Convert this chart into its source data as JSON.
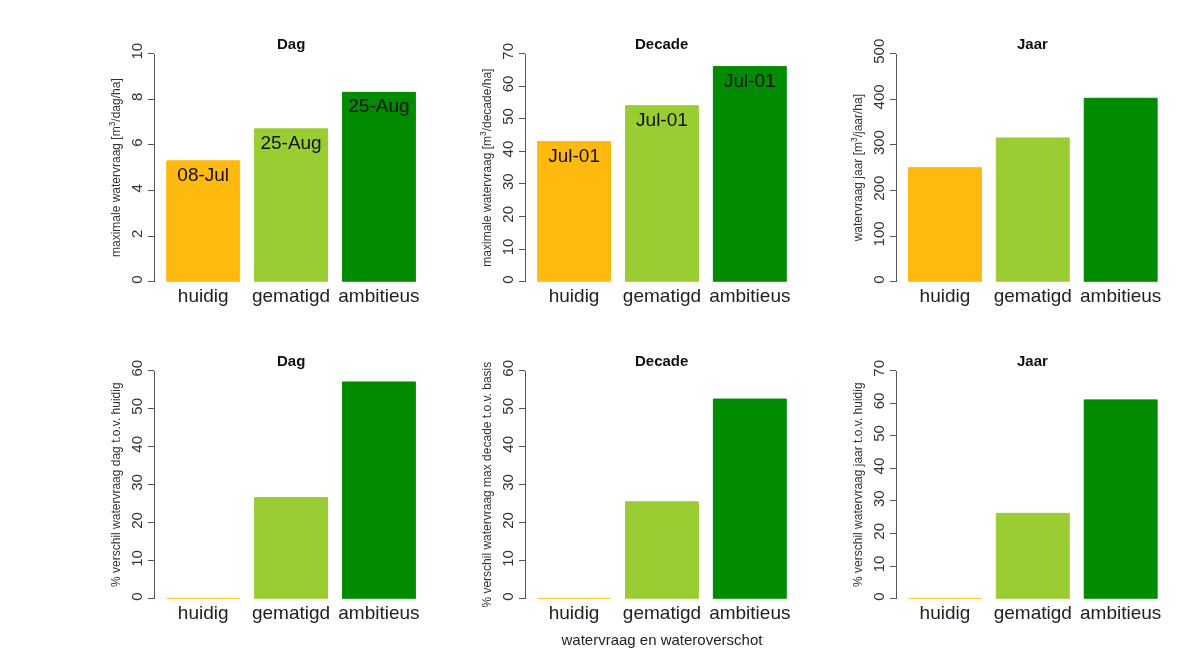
{
  "chart_data": [
    {
      "type": "bar",
      "title": "Dag",
      "ylabel": "maximale watervraag [m$^{3}$/dag/ha]",
      "categories": [
        "huidig",
        "gematigd",
        "ambitieus"
      ],
      "values": [
        5.3,
        6.7,
        8.3
      ],
      "colors": [
        "#ffb90f",
        "#9acd32",
        "#008b00"
      ],
      "ylim": [
        0,
        10
      ],
      "yticks": [
        0,
        2,
        4,
        6,
        8,
        10
      ],
      "grid": false,
      "legend": false,
      "value_labels": [
        "08-Jul",
        "25-Aug",
        "25-Aug"
      ]
    },
    {
      "type": "bar",
      "title": "Decade",
      "ylabel": "maximale watervraag [m$^{3}$/decade/ha]",
      "categories": [
        "huidig",
        "gematigd",
        "ambitieus"
      ],
      "values": [
        43,
        54,
        66
      ],
      "colors": [
        "#ffb90f",
        "#9acd32",
        "#008b00"
      ],
      "ylim": [
        0,
        70
      ],
      "yticks": [
        0,
        10,
        20,
        30,
        40,
        50,
        60,
        70
      ],
      "grid": false,
      "legend": false,
      "value_labels": [
        "Jul-01",
        "Jul-01",
        "Jul-01"
      ]
    },
    {
      "type": "bar",
      "title": "Jaar",
      "ylabel": "watervraag jaar [m$^{3}$/jaar/ha]",
      "categories": [
        "huidig",
        "gematigd",
        "ambitieus"
      ],
      "values": [
        250,
        315,
        402
      ],
      "colors": [
        "#ffb90f",
        "#9acd32",
        "#008b00"
      ],
      "ylim": [
        0,
        500
      ],
      "yticks": [
        0,
        100,
        200,
        300,
        400,
        500
      ],
      "grid": false,
      "legend": false
    },
    {
      "type": "bar",
      "title": "Dag",
      "ylabel": "% verschil watervraag dag t.o.v. huidig",
      "categories": [
        "huidig",
        "gematigd",
        "ambitieus"
      ],
      "values": [
        0,
        26.6,
        57
      ],
      "colors": [
        "#ffb90f",
        "#9acd32",
        "#008b00"
      ],
      "ylim": [
        0,
        60
      ],
      "yticks": [
        0,
        10,
        20,
        30,
        40,
        50,
        60
      ],
      "grid": false,
      "legend": false
    },
    {
      "type": "bar",
      "title": "Decade",
      "ylabel": "% verschil watervraag max decade t.o.v. basis",
      "xlabel": "watervraag en wateroverschot",
      "categories": [
        "huidig",
        "gematigd",
        "ambitieus"
      ],
      "values": [
        0,
        25.5,
        52.5
      ],
      "colors": [
        "#ffb90f",
        "#9acd32",
        "#008b00"
      ],
      "ylim": [
        0,
        60
      ],
      "yticks": [
        0,
        10,
        20,
        30,
        40,
        50,
        60
      ],
      "grid": false,
      "legend": false
    },
    {
      "type": "bar",
      "title": "Jaar",
      "ylabel": "% verschil watervraag jaar t.o.v. huidig",
      "categories": [
        "huidig",
        "gematigd",
        "ambitieus"
      ],
      "values": [
        0,
        26.2,
        61
      ],
      "colors": [
        "#ffb90f",
        "#9acd32",
        "#008b00"
      ],
      "ylim": [
        0,
        70
      ],
      "yticks": [
        0,
        10,
        20,
        30,
        40,
        50,
        60,
        70
      ],
      "grid": false,
      "legend": false
    }
  ]
}
